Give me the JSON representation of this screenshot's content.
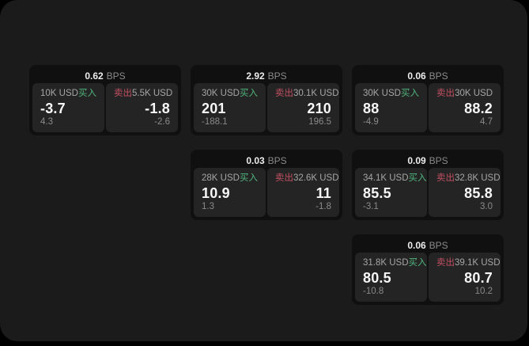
{
  "labels": {
    "bps_unit": "BPS",
    "buy": "买入",
    "sell": "卖出"
  },
  "colors": {
    "page_bg": "#1b1b1b",
    "card_bg": "#101010",
    "panel_bg": "#242424",
    "buy_green": "#50b47d",
    "sell_red": "#c25062"
  },
  "cards": [
    {
      "bps": "0.62",
      "buy": {
        "amount": "10K USD",
        "value": "-3.7",
        "change": "4.3"
      },
      "sell": {
        "amount": "5.5K USD",
        "value": "-1.8",
        "change": "-2.6"
      }
    },
    {
      "bps": "2.92",
      "buy": {
        "amount": "30K USD",
        "value": "201",
        "change": "-188.1"
      },
      "sell": {
        "amount": "30.1K USD",
        "value": "210",
        "change": "196.5"
      }
    },
    {
      "bps": "0.06",
      "buy": {
        "amount": "30K USD",
        "value": "88",
        "change": "-4.9"
      },
      "sell": {
        "amount": "30K USD",
        "value": "88.2",
        "change": "4.7"
      }
    },
    {
      "bps": "0.03",
      "buy": {
        "amount": "28K USD",
        "value": "10.9",
        "change": "1.3"
      },
      "sell": {
        "amount": "32.6K USD",
        "value": "11",
        "change": "-1.8"
      }
    },
    {
      "bps": "0.09",
      "buy": {
        "amount": "34.1K USD",
        "value": "85.5",
        "change": "-3.1"
      },
      "sell": {
        "amount": "32.8K USD",
        "value": "85.8",
        "change": "3.0"
      }
    },
    {
      "bps": "0.06",
      "buy": {
        "amount": "31.8K USD",
        "value": "80.5",
        "change": "-10.8"
      },
      "sell": {
        "amount": "39.1K USD",
        "value": "80.7",
        "change": "10.2"
      }
    }
  ]
}
